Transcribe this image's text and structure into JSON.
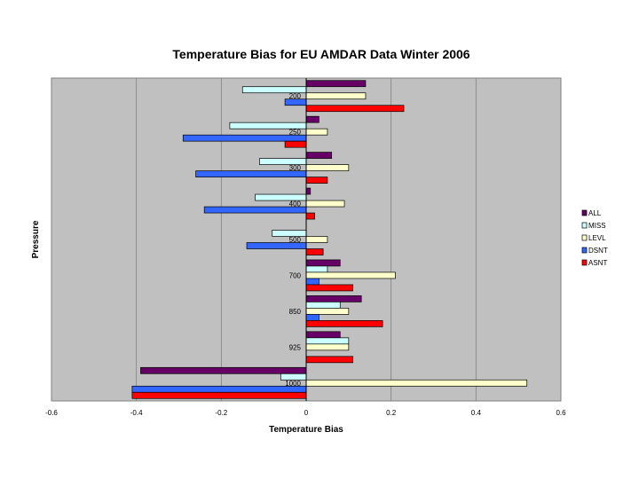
{
  "chart_data": {
    "type": "bar",
    "orientation": "horizontal",
    "title": "Temperature Bias for EU AMDAR Data Winter 2006",
    "xlabel": "Temperature Bias",
    "ylabel": "Pressure",
    "xlim": [
      -0.6,
      0.6
    ],
    "xticks": [
      "-0.6",
      "-0.4",
      "-0.2",
      "0",
      "0.2",
      "0.4",
      "0.6"
    ],
    "grid": true,
    "legend_position": "right",
    "plot_background": "#c0c0c0",
    "categories": [
      "200",
      "250",
      "300",
      "400",
      "500",
      "700",
      "850",
      "925",
      "1000"
    ],
    "series": [
      {
        "name": "ALL",
        "color": "#660066",
        "values": [
          0.14,
          0.03,
          0.06,
          0.01,
          0.0,
          0.08,
          0.13,
          0.08,
          -0.39
        ]
      },
      {
        "name": "MISS",
        "color": "#ccffff",
        "values": [
          -0.15,
          -0.18,
          -0.11,
          -0.12,
          -0.08,
          0.05,
          0.08,
          0.1,
          -0.06
        ]
      },
      {
        "name": "LEVL",
        "color": "#ffffcc",
        "values": [
          0.14,
          0.05,
          0.1,
          0.09,
          0.05,
          0.21,
          0.1,
          0.1,
          0.52
        ]
      },
      {
        "name": "DSNT",
        "color": "#3366ff",
        "values": [
          -0.05,
          -0.29,
          -0.26,
          -0.24,
          -0.14,
          0.03,
          0.03,
          0.0,
          -0.41
        ]
      },
      {
        "name": "ASNT",
        "color": "#ff0000",
        "values": [
          0.23,
          -0.05,
          0.05,
          0.02,
          0.04,
          0.11,
          0.18,
          0.11,
          -0.41
        ]
      }
    ]
  }
}
